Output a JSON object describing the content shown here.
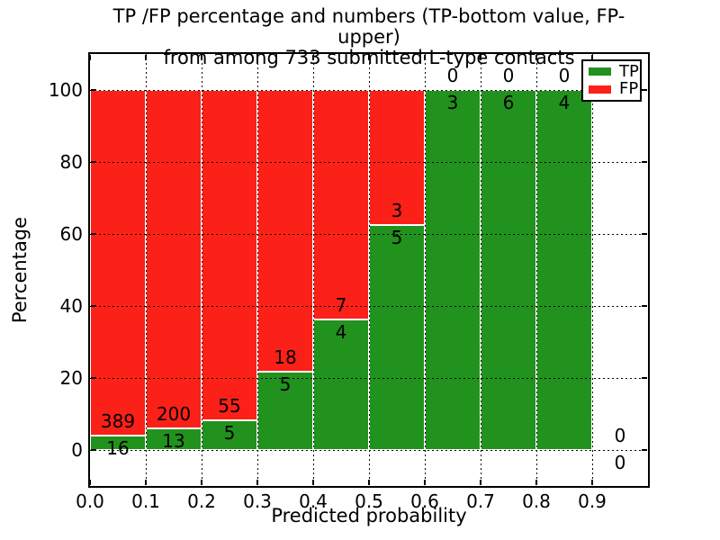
{
  "chart_data": {
    "type": "bar",
    "stacked": true,
    "title": "TP /FP percentage and numbers (TP-bottom value, FP-upper)",
    "subtitle": "from among 733 submitted L-type contacts",
    "xlabel": "Predicted probability",
    "ylabel": "Percentage",
    "total_contacts": 733,
    "xlim": [
      0.0,
      1.0
    ],
    "ylim": [
      -10,
      110
    ],
    "grid": "dotted",
    "tick_direction": "in",
    "xticks": {
      "values": [
        0.0,
        0.1,
        0.2,
        0.3,
        0.4,
        0.5,
        0.6,
        0.7,
        0.8,
        0.9
      ],
      "labels": [
        "0.0",
        "0.1",
        "0.2",
        "0.3",
        "0.4",
        "0.5",
        "0.6",
        "0.7",
        "0.8",
        "0.9"
      ]
    },
    "yticks": {
      "values": [
        0,
        20,
        40,
        60,
        80,
        100
      ],
      "labels": [
        "0",
        "20",
        "40",
        "60",
        "80",
        "100"
      ]
    },
    "colors": {
      "tp": "#22921e",
      "fp": "#fb2018",
      "bar_edge": "#ffffff",
      "grid": "#000000"
    },
    "legend": {
      "position": "upper-right",
      "entries": [
        {
          "label": "TP",
          "color": "#22921e"
        },
        {
          "label": "FP",
          "color": "#fb2018"
        }
      ]
    },
    "bins": [
      {
        "x_start": 0.0,
        "x_end": 0.1,
        "tp": 16,
        "fp": 389,
        "tp_pct": 3.95
      },
      {
        "x_start": 0.1,
        "x_end": 0.2,
        "tp": 13,
        "fp": 200,
        "tp_pct": 6.1
      },
      {
        "x_start": 0.2,
        "x_end": 0.3,
        "tp": 5,
        "fp": 55,
        "tp_pct": 8.33
      },
      {
        "x_start": 0.3,
        "x_end": 0.4,
        "tp": 5,
        "fp": 18,
        "tp_pct": 21.74
      },
      {
        "x_start": 0.4,
        "x_end": 0.5,
        "tp": 4,
        "fp": 7,
        "tp_pct": 36.36
      },
      {
        "x_start": 0.5,
        "x_end": 0.6,
        "tp": 5,
        "fp": 3,
        "tp_pct": 62.5
      },
      {
        "x_start": 0.6,
        "x_end": 0.7,
        "tp": 3,
        "fp": 0,
        "tp_pct": 100
      },
      {
        "x_start": 0.7,
        "x_end": 0.8,
        "tp": 6,
        "fp": 0,
        "tp_pct": 100
      },
      {
        "x_start": 0.8,
        "x_end": 0.9,
        "tp": 4,
        "fp": 0,
        "tp_pct": 100
      },
      {
        "x_start": 0.9,
        "x_end": 1.0,
        "tp": 0,
        "fp": 0,
        "tp_pct": null
      }
    ]
  }
}
